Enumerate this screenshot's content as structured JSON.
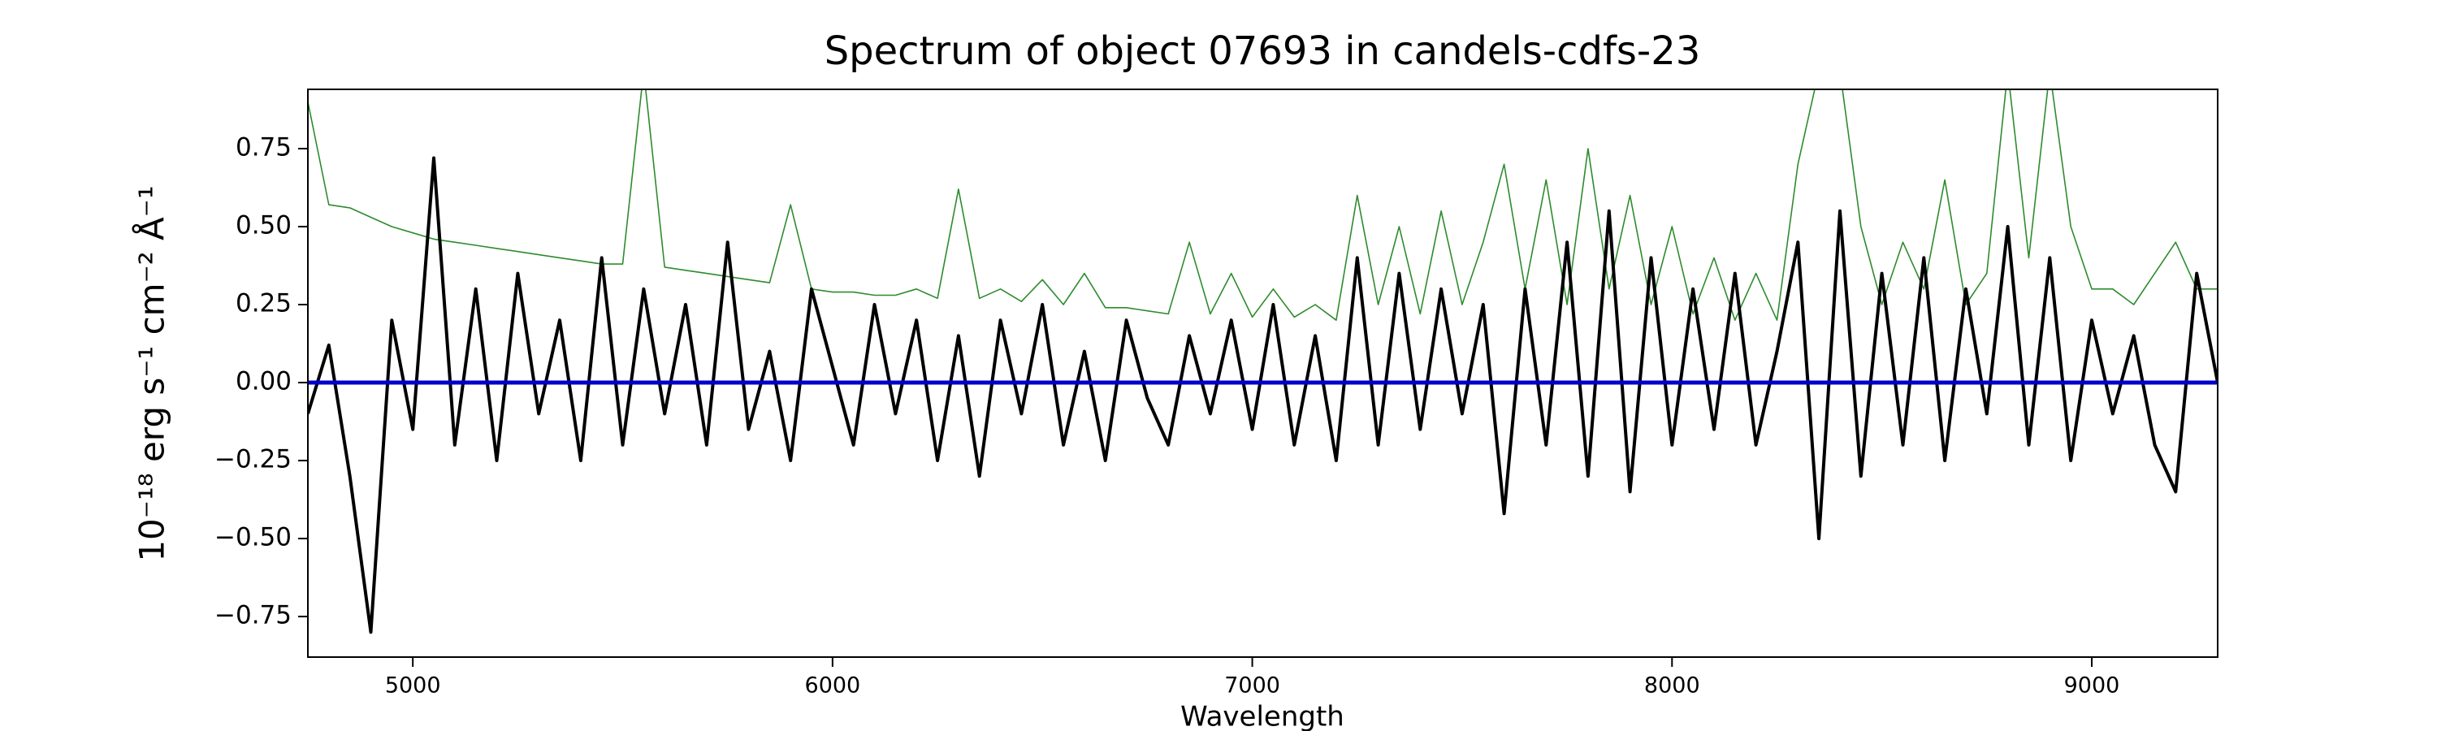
{
  "chart_data": {
    "type": "line",
    "title": "Spectrum of object 07693 in candels-cdfs-23",
    "xlabel": "Wavelength",
    "ylabel": "10⁻¹⁸ erg s⁻¹ cm⁻² Å⁻¹",
    "x": [
      4750,
      4800,
      4850,
      4900,
      4950,
      5000,
      5050,
      5100,
      5150,
      5200,
      5250,
      5300,
      5350,
      5400,
      5450,
      5500,
      5550,
      5600,
      5650,
      5700,
      5750,
      5800,
      5850,
      5900,
      5950,
      6000,
      6050,
      6100,
      6150,
      6200,
      6250,
      6300,
      6350,
      6400,
      6450,
      6500,
      6550,
      6600,
      6650,
      6700,
      6750,
      6800,
      6850,
      6900,
      6950,
      7000,
      7050,
      7100,
      7150,
      7200,
      7250,
      7300,
      7350,
      7400,
      7450,
      7500,
      7550,
      7600,
      7650,
      7700,
      7750,
      7800,
      7850,
      7900,
      7950,
      8000,
      8050,
      8100,
      8150,
      8200,
      8250,
      8300,
      8350,
      8400,
      8450,
      8500,
      8550,
      8600,
      8650,
      8700,
      8750,
      8800,
      8850,
      8900,
      8950,
      9000,
      9050,
      9100,
      9150,
      9200,
      9250,
      9300
    ],
    "series": [
      {
        "color": "#000000",
        "values": [
          -0.1,
          0.12,
          -0.3,
          -0.8,
          0.2,
          -0.15,
          0.72,
          -0.2,
          0.3,
          -0.25,
          0.35,
          -0.1,
          0.2,
          -0.25,
          0.4,
          -0.2,
          0.3,
          -0.1,
          0.25,
          -0.2,
          0.45,
          -0.15,
          0.1,
          -0.25,
          0.3,
          0.05,
          -0.2,
          0.25,
          -0.1,
          0.2,
          -0.25,
          0.15,
          -0.3,
          0.2,
          -0.1,
          0.25,
          -0.2,
          0.1,
          -0.25,
          0.2,
          -0.05,
          -0.2,
          0.15,
          -0.1,
          0.2,
          -0.15,
          0.25,
          -0.2,
          0.15,
          -0.25,
          0.4,
          -0.2,
          0.35,
          -0.15,
          0.3,
          -0.1,
          0.25,
          -0.42,
          0.3,
          -0.2,
          0.45,
          -0.3,
          0.55,
          -0.35,
          0.4,
          -0.2,
          0.3,
          -0.15,
          0.35,
          -0.2,
          0.1,
          0.45,
          -0.5,
          0.55,
          -0.3,
          0.35,
          -0.2,
          0.4,
          -0.25,
          0.3,
          -0.1,
          0.5,
          -0.2,
          0.4,
          -0.25,
          0.2,
          -0.1,
          0.15,
          -0.2,
          -0.35,
          0.35,
          0.0
        ]
      },
      {
        "color": "#2e8b2e",
        "values": [
          0.9,
          0.57,
          0.56,
          0.53,
          0.5,
          0.48,
          0.46,
          0.45,
          0.44,
          0.43,
          0.42,
          0.41,
          0.4,
          0.39,
          0.38,
          0.38,
          1.0,
          0.37,
          0.36,
          0.35,
          0.34,
          0.33,
          0.32,
          0.57,
          0.3,
          0.29,
          0.29,
          0.28,
          0.28,
          0.3,
          0.27,
          0.62,
          0.27,
          0.3,
          0.26,
          0.33,
          0.25,
          0.35,
          0.24,
          0.24,
          0.23,
          0.22,
          0.45,
          0.22,
          0.35,
          0.21,
          0.3,
          0.21,
          0.25,
          0.2,
          0.6,
          0.25,
          0.5,
          0.22,
          0.55,
          0.25,
          0.45,
          0.7,
          0.3,
          0.65,
          0.25,
          0.75,
          0.3,
          0.6,
          0.25,
          0.5,
          0.22,
          0.4,
          0.2,
          0.35,
          0.2,
          0.7,
          1.0,
          1.0,
          0.5,
          0.25,
          0.45,
          0.3,
          0.65,
          0.25,
          0.35,
          1.0,
          0.4,
          1.0,
          0.5,
          0.3,
          0.3,
          0.25,
          0.35,
          0.45,
          0.3,
          0.3
        ]
      }
    ],
    "hline": 0,
    "hline_color": "#0000cc",
    "xlim": [
      4750,
      9300
    ],
    "ylim": [
      -0.88,
      0.94
    ],
    "xticks": [
      5000,
      6000,
      7000,
      8000,
      9000
    ],
    "yticks": [
      {
        "value": -0.75,
        "label": "−0.75"
      },
      {
        "value": -0.5,
        "label": "−0.50"
      },
      {
        "value": -0.25,
        "label": "−0.25"
      },
      {
        "value": 0,
        "label": "0.00"
      },
      {
        "value": 0.25,
        "label": "0.25"
      },
      {
        "value": 0.5,
        "label": "0.50"
      },
      0.75
    ]
  }
}
